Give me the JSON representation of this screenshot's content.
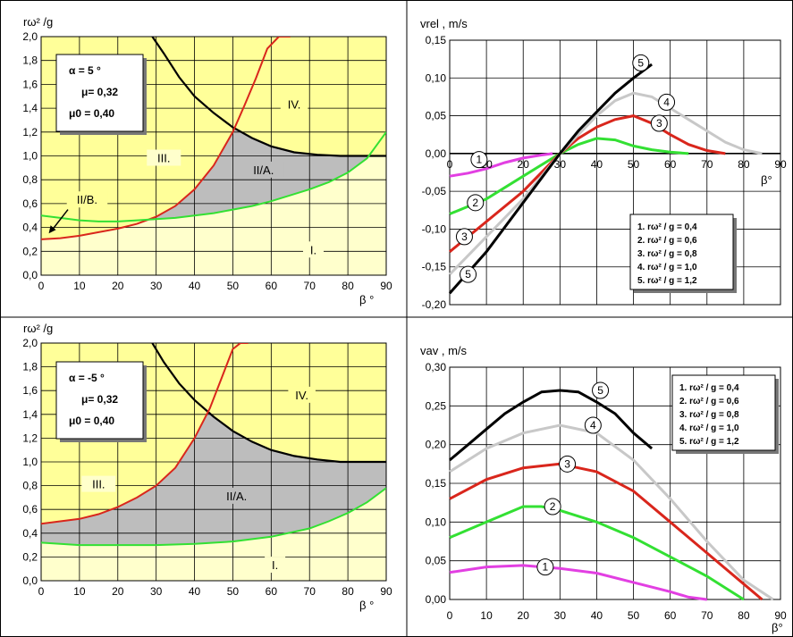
{
  "colors": {
    "yellow": "#ffff99",
    "paleYellow": "#ffffcc",
    "gray": "#bdbdbd",
    "black": "#000000",
    "red": "#d9261c",
    "green": "#33e033",
    "lightGray": "#c8c8c8",
    "magenta": "#e23fe2"
  },
  "chart_data": [
    {
      "type": "area",
      "ylabel": "rω² /g",
      "xlabel": "β °",
      "xlim": [
        0,
        90
      ],
      "ylim": [
        0,
        2.0
      ],
      "x_ticks": [
        "0",
        "10",
        "20",
        "30",
        "40",
        "50",
        "60",
        "70",
        "80",
        "90"
      ],
      "y_ticks": [
        "0,0",
        "0,2",
        "0,4",
        "0,6",
        "0,8",
        "1,0",
        "1,2",
        "1,4",
        "1,6",
        "1,8",
        "2,0"
      ],
      "grid": true,
      "params": [
        "α = 5 °",
        "μ= 0,32",
        "μ0 = 0,40"
      ],
      "region_labels": [
        {
          "text": "IV.",
          "x": 66,
          "y": 1.42
        },
        {
          "text": "III.",
          "x": 32,
          "y": 0.97
        },
        {
          "text": "II/A.",
          "x": 58,
          "y": 0.87
        },
        {
          "text": "I.",
          "x": 71,
          "y": 0.2
        },
        {
          "text": "II/B.",
          "x": 12,
          "y": 0.62
        }
      ],
      "series": [
        {
          "color": "black",
          "x": [
            29,
            32,
            36,
            40,
            45,
            50,
            55,
            60,
            66,
            72,
            78,
            85,
            90
          ],
          "y": [
            2.0,
            1.86,
            1.66,
            1.5,
            1.36,
            1.24,
            1.15,
            1.08,
            1.03,
            1.01,
            1.0,
            1.0,
            1.0
          ]
        },
        {
          "color": "red",
          "x": [
            0,
            5,
            10,
            15,
            20,
            25,
            30,
            35,
            40,
            45,
            50,
            53,
            56,
            59,
            62,
            65
          ],
          "y": [
            0.3,
            0.31,
            0.33,
            0.36,
            0.39,
            0.43,
            0.49,
            0.58,
            0.72,
            0.92,
            1.2,
            1.42,
            1.65,
            1.9,
            2.0,
            2.0
          ]
        },
        {
          "color": "green",
          "x": [
            0,
            5,
            10,
            15,
            20,
            25,
            30,
            35,
            40,
            45,
            50,
            55,
            60,
            65,
            70,
            75,
            80,
            85,
            90
          ],
          "y": [
            0.5,
            0.48,
            0.46,
            0.45,
            0.45,
            0.46,
            0.47,
            0.48,
            0.5,
            0.52,
            0.55,
            0.58,
            0.62,
            0.67,
            0.72,
            0.78,
            0.86,
            0.98,
            1.2
          ]
        }
      ]
    },
    {
      "type": "line",
      "ylabel": "vrel , m/s",
      "xlabel": "β°",
      "xlim": [
        0,
        90
      ],
      "ylim": [
        -0.2,
        0.15
      ],
      "x_ticks": [
        "0",
        "10",
        "20",
        "30",
        "40",
        "50",
        "60",
        "70",
        "80",
        "90"
      ],
      "y_ticks": [
        "0,15",
        "0,10",
        "0,05",
        "0,00",
        "-0,05",
        "-0,10",
        "-0,15",
        "-0,20"
      ],
      "grid": true,
      "legend": [
        "1. rω² / g = 0,4",
        "2. rω² / g = 0,6",
        "3. rω² / g = 0,8",
        "4. rω² / g = 1,0",
        "5. rω² / g = 1,2"
      ],
      "legend_position": "bottom-right",
      "series": [
        {
          "label": "1",
          "color": "magenta",
          "x": [
            0,
            5,
            10,
            15,
            20,
            25,
            28
          ],
          "y": [
            -0.03,
            -0.026,
            -0.02,
            -0.012,
            -0.006,
            -0.002,
            0.0
          ]
        },
        {
          "label": "2",
          "color": "green",
          "x": [
            0,
            10,
            20,
            30,
            35,
            40,
            45,
            50,
            55,
            60,
            65
          ],
          "y": [
            -0.08,
            -0.06,
            -0.03,
            0.0,
            0.012,
            0.02,
            0.018,
            0.01,
            0.005,
            0.002,
            0.0
          ]
        },
        {
          "label": "3",
          "color": "red",
          "x": [
            0,
            10,
            20,
            30,
            35,
            40,
            45,
            50,
            55,
            60,
            65,
            70,
            75
          ],
          "y": [
            -0.13,
            -0.09,
            -0.05,
            0.0,
            0.02,
            0.035,
            0.045,
            0.05,
            0.04,
            0.025,
            0.012,
            0.004,
            0.0
          ]
        },
        {
          "label": "4",
          "color": "lightGray",
          "x": [
            0,
            10,
            20,
            30,
            35,
            40,
            45,
            50,
            55,
            60,
            65,
            70,
            75,
            80,
            85
          ],
          "y": [
            -0.16,
            -0.11,
            -0.06,
            0.0,
            0.025,
            0.05,
            0.07,
            0.08,
            0.075,
            0.06,
            0.045,
            0.03,
            0.015,
            0.005,
            0.0
          ]
        },
        {
          "label": "5",
          "color": "black",
          "x": [
            0,
            10,
            20,
            30,
            35,
            40,
            45,
            50,
            55
          ],
          "y": [
            -0.185,
            -0.13,
            -0.065,
            0.0,
            0.03,
            0.055,
            0.08,
            0.1,
            0.118
          ]
        }
      ],
      "circle_labels": [
        {
          "n": "1",
          "x": 8,
          "y": -0.008
        },
        {
          "n": "2",
          "x": 7,
          "y": -0.065
        },
        {
          "n": "3",
          "x": 4,
          "y": -0.11
        },
        {
          "n": "4",
          "x": 59,
          "y": 0.068
        },
        {
          "n": "5",
          "x": 52,
          "y": 0.12
        },
        {
          "n": "3",
          "x": 57,
          "y": 0.04
        },
        {
          "n": "5",
          "x": 5,
          "y": -0.16
        }
      ]
    },
    {
      "type": "area",
      "ylabel": "rω² /g",
      "xlabel": "β °",
      "xlim": [
        0,
        90
      ],
      "ylim": [
        0,
        2.0
      ],
      "x_ticks": [
        "0",
        "10",
        "20",
        "30",
        "40",
        "50",
        "60",
        "70",
        "80",
        "90"
      ],
      "y_ticks": [
        "0,0",
        "0,2",
        "0,4",
        "0,6",
        "0,8",
        "1,0",
        "1,2",
        "1,4",
        "1,6",
        "1,8",
        "2,0"
      ],
      "grid": true,
      "params": [
        "α = -5 °",
        "μ= 0,32",
        "μ0 = 0,40"
      ],
      "region_labels": [
        {
          "text": "IV.",
          "x": 68,
          "y": 1.55
        },
        {
          "text": "III.",
          "x": 15,
          "y": 0.8
        },
        {
          "text": "II/A.",
          "x": 51,
          "y": 0.7
        },
        {
          "text": "I.",
          "x": 61,
          "y": 0.12
        }
      ],
      "series": [
        {
          "color": "black",
          "x": [
            29,
            32,
            36,
            40,
            45,
            50,
            55,
            60,
            66,
            72,
            78,
            85,
            90
          ],
          "y": [
            2.0,
            1.84,
            1.66,
            1.52,
            1.38,
            1.26,
            1.17,
            1.1,
            1.05,
            1.02,
            1.0,
            1.0,
            1.0
          ]
        },
        {
          "color": "red",
          "x": [
            0,
            5,
            10,
            15,
            20,
            25,
            30,
            35,
            40,
            44,
            47,
            50,
            52,
            54
          ],
          "y": [
            0.48,
            0.5,
            0.52,
            0.56,
            0.62,
            0.7,
            0.8,
            0.95,
            1.2,
            1.45,
            1.7,
            1.95,
            2.0,
            2.0
          ]
        },
        {
          "color": "green",
          "x": [
            0,
            10,
            20,
            30,
            40,
            50,
            60,
            70,
            75,
            80,
            85,
            90
          ],
          "y": [
            0.32,
            0.3,
            0.3,
            0.3,
            0.31,
            0.33,
            0.37,
            0.44,
            0.5,
            0.57,
            0.66,
            0.78
          ]
        }
      ]
    },
    {
      "type": "line",
      "ylabel": "vav , m/s",
      "xlabel": "β°",
      "xlim": [
        0,
        90
      ],
      "ylim": [
        0,
        0.3
      ],
      "x_ticks": [
        "0",
        "10",
        "20",
        "30",
        "40",
        "50",
        "60",
        "70",
        "80",
        "90"
      ],
      "y_ticks": [
        "0,30",
        "0,25",
        "0,20",
        "0,15",
        "0,10",
        "0,05",
        "0,00"
      ],
      "grid": true,
      "legend": [
        "1. rω² / g = 0,4",
        "2. rω² / g = 0,6",
        "3. rω² / g = 0,8",
        "4. rω² / g = 1,0",
        "5. rω² / g = 1,2"
      ],
      "legend_position": "top-right",
      "series": [
        {
          "label": "1",
          "color": "magenta",
          "x": [
            0,
            10,
            20,
            30,
            40,
            50,
            60,
            65,
            70
          ],
          "y": [
            0.035,
            0.042,
            0.044,
            0.04,
            0.034,
            0.022,
            0.01,
            0.003,
            0.0
          ]
        },
        {
          "label": "2",
          "color": "green",
          "x": [
            0,
            10,
            20,
            25,
            30,
            40,
            50,
            60,
            70,
            75,
            80
          ],
          "y": [
            0.08,
            0.1,
            0.12,
            0.12,
            0.115,
            0.1,
            0.08,
            0.055,
            0.03,
            0.015,
            0.0
          ]
        },
        {
          "label": "3",
          "color": "red",
          "x": [
            0,
            10,
            20,
            30,
            40,
            50,
            60,
            70,
            80,
            85
          ],
          "y": [
            0.13,
            0.155,
            0.17,
            0.175,
            0.165,
            0.14,
            0.1,
            0.06,
            0.02,
            0.0
          ]
        },
        {
          "label": "4",
          "color": "lightGray",
          "x": [
            0,
            10,
            20,
            30,
            40,
            50,
            60,
            70,
            80,
            88
          ],
          "y": [
            0.165,
            0.195,
            0.215,
            0.225,
            0.215,
            0.18,
            0.13,
            0.075,
            0.025,
            0.0
          ]
        },
        {
          "label": "5",
          "color": "black",
          "x": [
            0,
            5,
            10,
            15,
            20,
            25,
            30,
            35,
            40,
            45,
            50,
            55
          ],
          "y": [
            0.18,
            0.2,
            0.22,
            0.24,
            0.255,
            0.268,
            0.27,
            0.268,
            0.255,
            0.24,
            0.215,
            0.195
          ]
        }
      ],
      "circle_labels": [
        {
          "n": "1",
          "x": 26,
          "y": 0.042
        },
        {
          "n": "2",
          "x": 28,
          "y": 0.12
        },
        {
          "n": "3",
          "x": 32,
          "y": 0.175
        },
        {
          "n": "4",
          "x": 39,
          "y": 0.225
        },
        {
          "n": "5",
          "x": 41,
          "y": 0.27
        }
      ]
    }
  ]
}
